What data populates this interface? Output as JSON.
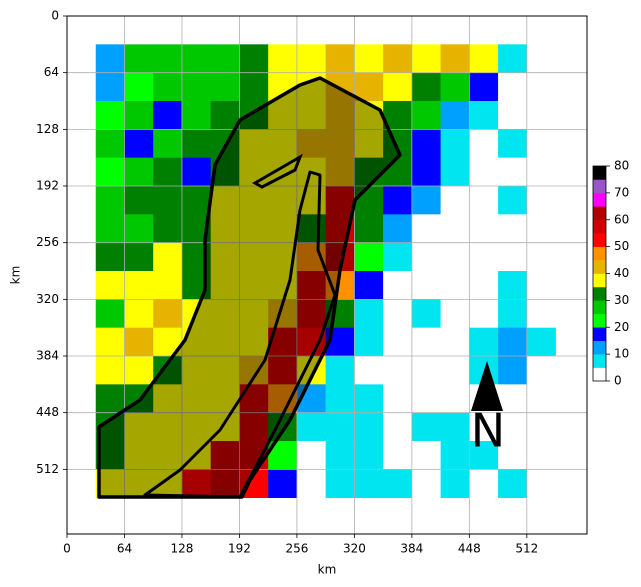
{
  "chart_data": {
    "type": "heatmap",
    "x_label": "km",
    "y_label": "km",
    "xlim": [
      0,
      579
    ],
    "ylim": [
      0,
      585
    ],
    "y_inverted": true,
    "xticks": [
      0,
      64,
      128,
      192,
      256,
      320,
      384,
      448,
      512
    ],
    "yticks": [
      0,
      64,
      128,
      192,
      256,
      320,
      384,
      448,
      512
    ],
    "grid": true,
    "xbins": [
      32,
      64,
      96,
      128,
      160,
      192,
      224,
      256,
      288,
      320,
      352,
      384,
      416,
      448,
      480,
      512,
      544
    ],
    "ybins": [
      32,
      64,
      96,
      128,
      160,
      192,
      224,
      256,
      288,
      320,
      352,
      384,
      416,
      448,
      480,
      512,
      544
    ],
    "values": [
      [
        12,
        25,
        27,
        27,
        25,
        30,
        38,
        38,
        42,
        38,
        40,
        38,
        40,
        38,
        8,
        0
      ],
      [
        12,
        22,
        25,
        28,
        27,
        30,
        38,
        36,
        40,
        40,
        35,
        30,
        28,
        15,
        0,
        0
      ],
      [
        20,
        25,
        15,
        28,
        30,
        32,
        35,
        38,
        42,
        38,
        32,
        28,
        12,
        5,
        0,
        0
      ],
      [
        25,
        15,
        28,
        30,
        30,
        35,
        38,
        40,
        40,
        38,
        32,
        15,
        8,
        0,
        5,
        0
      ],
      [
        22,
        25,
        30,
        18,
        34,
        36,
        38,
        35,
        40,
        30,
        34,
        18,
        5,
        0,
        0,
        0
      ],
      [
        28,
        30,
        32,
        34,
        35,
        36,
        38,
        36,
        55,
        34,
        18,
        10,
        0,
        0,
        5,
        0
      ],
      [
        25,
        28,
        30,
        32,
        35,
        37,
        36,
        34,
        58,
        30,
        12,
        0,
        0,
        0,
        0,
        0
      ],
      [
        30,
        32,
        35,
        34,
        36,
        37,
        38,
        45,
        60,
        20,
        8,
        0,
        0,
        0,
        0,
        0
      ],
      [
        35,
        38,
        36,
        34,
        36,
        38,
        35,
        58,
        45,
        15,
        0,
        0,
        0,
        0,
        5,
        0
      ],
      [
        25,
        38,
        40,
        36,
        37,
        38,
        40,
        58,
        30,
        8,
        0,
        5,
        0,
        0,
        8,
        0
      ],
      [
        38,
        40,
        36,
        36,
        37,
        38,
        55,
        50,
        15,
        5,
        0,
        0,
        0,
        8,
        10,
        8
      ],
      [
        35,
        38,
        30,
        36,
        35,
        40,
        58,
        35,
        8,
        0,
        0,
        0,
        0,
        8,
        10,
        0
      ],
      [
        30,
        34,
        36,
        35,
        38,
        55,
        45,
        12,
        8,
        8,
        0,
        0,
        0,
        0,
        0,
        0
      ],
      [
        30,
        36,
        35,
        38,
        37,
        58,
        30,
        8,
        8,
        8,
        0,
        5,
        8,
        0,
        0,
        0
      ],
      [
        34,
        36,
        38,
        38,
        56,
        58,
        20,
        0,
        8,
        8,
        0,
        0,
        8,
        8,
        0,
        0
      ],
      [
        36,
        37,
        38,
        52,
        56,
        52,
        15,
        0,
        5,
        8,
        5,
        0,
        8,
        0,
        5,
        0
      ]
    ],
    "colorbar_ticks": [
      0,
      10,
      20,
      30,
      40,
      50,
      60,
      70,
      80
    ],
    "levels": [
      0,
      5,
      10,
      15,
      20,
      25,
      30,
      35,
      40,
      45,
      50,
      55,
      60,
      65,
      70,
      75,
      80
    ],
    "colors": [
      "#ffffff",
      "#00e5f0",
      "#00a0ff",
      "#0000ff",
      "#00ff00",
      "#00c800",
      "#008000",
      "#ffff00",
      "#e6b400",
      "#ff9000",
      "#ff0000",
      "#d00000",
      "#b00000",
      "#ff00ff",
      "#9955c9",
      "#000000"
    ],
    "annotation": "N"
  }
}
